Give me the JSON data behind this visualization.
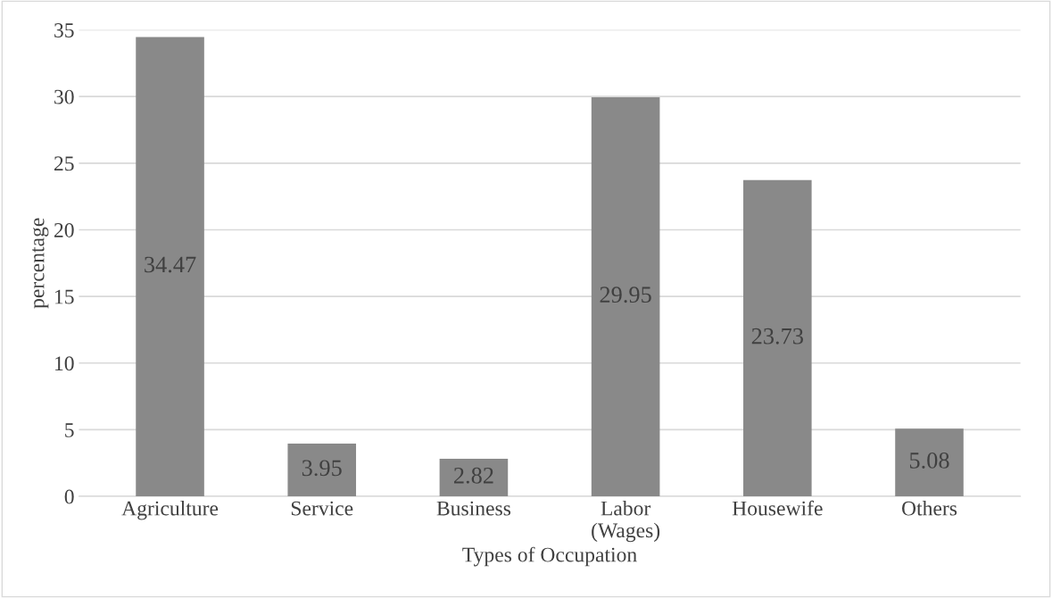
{
  "chart_data": {
    "type": "bar",
    "xlabel": "Types of Occupation",
    "ylabel": "percentage",
    "categories": [
      "Agriculture",
      "Service",
      "Business",
      "Labor\n(Wages)",
      "Housewife",
      "Others"
    ],
    "values": [
      34.47,
      3.95,
      2.82,
      29.95,
      23.73,
      5.08
    ],
    "color": "#898989",
    "ylim": [
      0,
      35
    ],
    "yticks": [
      0,
      5,
      10,
      15,
      20,
      25,
      30,
      35
    ],
    "grid": "y",
    "data_labels": true
  }
}
